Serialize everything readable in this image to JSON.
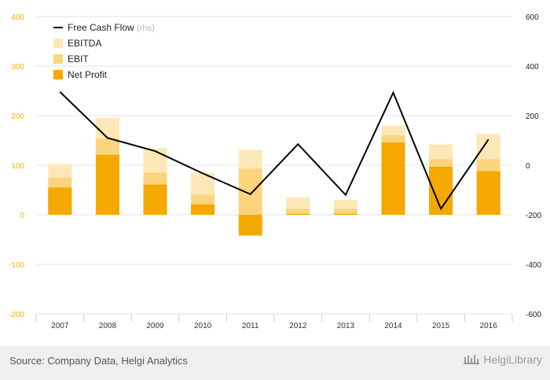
{
  "chart_data": {
    "type": "bar",
    "categories": [
      "2007",
      "2008",
      "2009",
      "2010",
      "2011",
      "2012",
      "2013",
      "2014",
      "2015",
      "2016"
    ],
    "series": [
      {
        "name": "EBITDA",
        "values": [
          102,
          196,
          134,
          84,
          131,
          35,
          30,
          180,
          142,
          163
        ],
        "color": "#fde7b6"
      },
      {
        "name": "EBIT",
        "values": [
          75,
          154,
          85,
          41,
          93,
          12,
          12,
          160,
          112,
          112
        ],
        "color": "#fbd47e"
      },
      {
        "name": "Net Profit",
        "values": [
          55,
          121,
          61,
          21,
          -42,
          2,
          2,
          146,
          97,
          88
        ],
        "color": "#f5a800"
      }
    ],
    "line_series": {
      "name": "Free Cash Flow",
      "note": "(rhs)",
      "values": [
        296,
        110,
        57,
        -33,
        -117,
        85,
        -120,
        293,
        -176,
        104
      ],
      "color": "#000000"
    },
    "y_left": {
      "ylim": [
        -200,
        400
      ],
      "ticks": [
        400,
        300,
        200,
        100,
        0,
        -100,
        -200
      ],
      "tick_color": "#f5b100"
    },
    "y_right": {
      "ylim": [
        -600,
        600
      ],
      "ticks": [
        600,
        400,
        200,
        0,
        -200,
        -400,
        -600
      ]
    },
    "legend_position": "top-left",
    "grid": true
  },
  "footer": {
    "source": "Source: Company Data, Helgi Analytics",
    "brand": "HelgiLibrary"
  }
}
